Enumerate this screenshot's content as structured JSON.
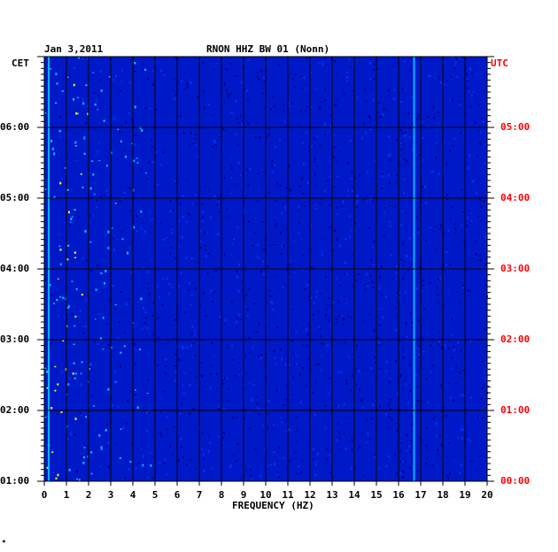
{
  "chart_data": {
    "type": "heatmap",
    "header": {
      "date": "Jan 3,2011",
      "station": "RNON HHZ BW 01 (Nonn)"
    },
    "left_axis": {
      "label": "CET",
      "ticks": [
        "06:00",
        "05:00",
        "04:00",
        "03:00",
        "02:00",
        "01:00"
      ]
    },
    "right_axis": {
      "label": "UTC",
      "ticks": [
        "05:00",
        "04:00",
        "03:00",
        "02:00",
        "01:00",
        "00:00"
      ],
      "color": "#ff0000"
    },
    "x_axis": {
      "label": "FREQUENCY (HZ)",
      "range": [
        0,
        20
      ],
      "ticks": [
        "0",
        "1",
        "2",
        "3",
        "4",
        "5",
        "6",
        "7",
        "8",
        "9",
        "10",
        "11",
        "12",
        "13",
        "14",
        "15",
        "16",
        "17",
        "18",
        "19",
        "20"
      ]
    },
    "y_range_hours_utc": [
      0,
      6
    ],
    "background_color": "#0019c8",
    "grid": true,
    "notable_lines_hz": [
      0.2,
      16.7
    ],
    "colormap": [
      "#00008c",
      "#0032ff",
      "#00c8ff",
      "#ffff00",
      "#ff0000"
    ]
  }
}
